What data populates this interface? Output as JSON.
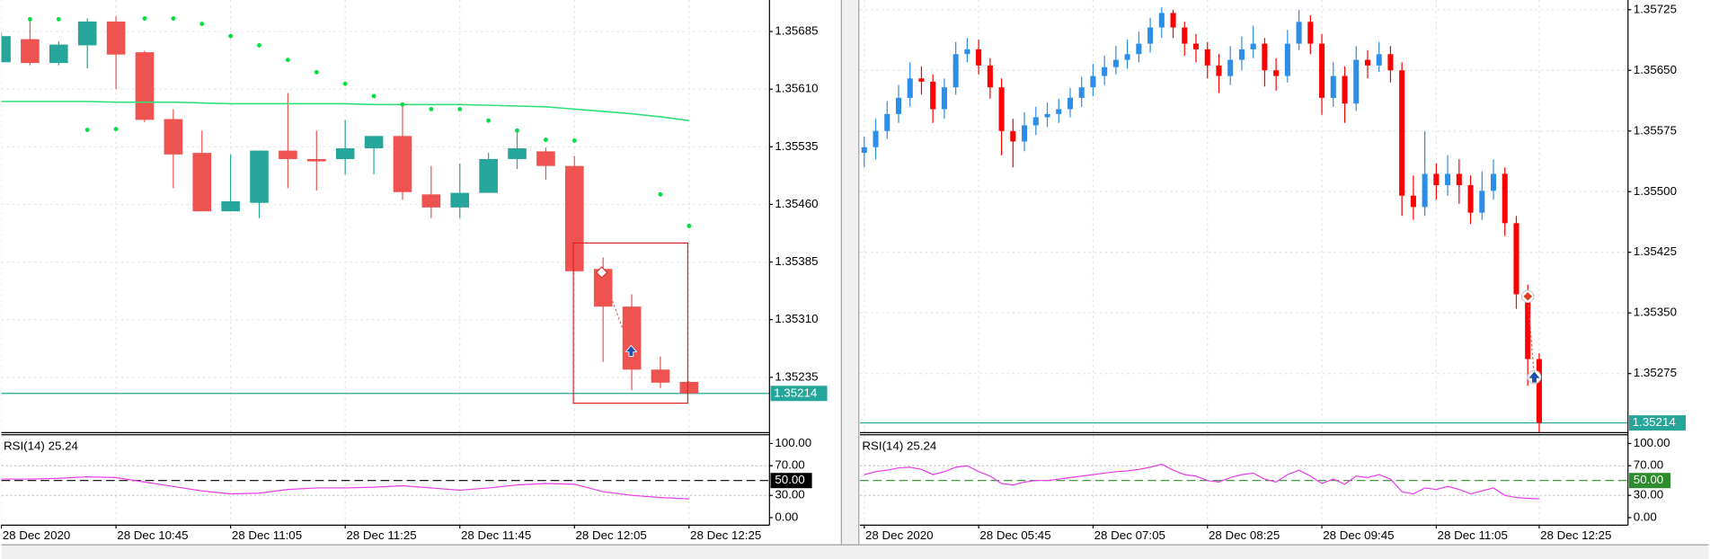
{
  "chart_data": [
    {
      "type": "candlestick",
      "categories": [
        "28 Dec 2020",
        null,
        null,
        null,
        "28 Dec 10:45",
        null,
        null,
        null,
        "28 Dec 11:05",
        null,
        null,
        null,
        "28 Dec 11:25",
        null,
        null,
        null,
        "28 Dec 11:45",
        null,
        null,
        null,
        "28 Dec 12:05",
        null,
        null,
        null,
        "28 Dec 12:25"
      ],
      "open": [
        1.35645,
        1.35675,
        1.35644,
        1.35667,
        1.35698,
        1.35658,
        1.35571,
        1.35527,
        1.35451,
        1.35462,
        1.3553,
        1.35519,
        1.35519,
        1.35533,
        1.35549,
        1.35473,
        1.35456,
        1.35475,
        1.35519,
        1.35529,
        1.3551,
        1.35376,
        1.35327,
        1.35245,
        1.35229
      ],
      "high": [
        1.35684,
        1.35701,
        1.35672,
        1.35702,
        1.35705,
        1.3566,
        1.35584,
        1.35556,
        1.35525,
        1.3553,
        1.35605,
        1.35556,
        1.3557,
        1.35549,
        1.35591,
        1.3551,
        1.35513,
        1.35527,
        1.35559,
        1.35534,
        1.35523,
        1.35391,
        1.35343,
        1.35262,
        1.3523
      ],
      "low": [
        1.35645,
        1.35641,
        1.35641,
        1.35637,
        1.3561,
        1.35567,
        1.35481,
        1.35451,
        1.35451,
        1.35442,
        1.35481,
        1.35478,
        1.35499,
        1.35499,
        1.35466,
        1.35442,
        1.35442,
        1.35475,
        1.35506,
        1.35492,
        1.35373,
        1.35255,
        1.35218,
        1.35221,
        1.35214
      ],
      "close": [
        1.35679,
        1.35644,
        1.35668,
        1.35698,
        1.35655,
        1.3557,
        1.35525,
        1.35451,
        1.35464,
        1.3553,
        1.35519,
        1.35516,
        1.35533,
        1.35549,
        1.35476,
        1.35456,
        1.35475,
        1.35519,
        1.35533,
        1.3551,
        1.35373,
        1.35327,
        1.35245,
        1.35228,
        1.35214
      ],
      "up_color": "#26a69a",
      "down_color": "#ef5350",
      "ma": {
        "color": "#2ee07a",
        "values": [
          1.35594,
          1.35594,
          1.35594,
          1.35594,
          1.35593,
          1.35593,
          1.35593,
          1.35592,
          1.35591,
          1.35591,
          1.35591,
          1.35591,
          1.35591,
          1.3559,
          1.3559,
          1.3559,
          1.3559,
          1.35589,
          1.35588,
          1.35587,
          1.35584,
          1.35581,
          1.35578,
          1.35574,
          1.35569
        ]
      },
      "sar": {
        "color": "#00e040",
        "values": [
          null,
          1.35701,
          1.35701,
          1.35557,
          1.35558,
          1.35702,
          1.35702,
          1.35695,
          1.35679,
          1.35667,
          1.35648,
          1.35632,
          1.35617,
          1.35601,
          1.3559,
          1.35584,
          1.35584,
          1.35569,
          1.35556,
          1.35544,
          1.35543,
          null,
          null,
          1.35473,
          1.35432
        ]
      },
      "ylim": [
        1.35163,
        1.35726
      ],
      "yticks": [
        {
          "value": 1.35685,
          "label": "1.35685"
        },
        {
          "value": 1.3561,
          "label": "1.35610"
        },
        {
          "value": 1.35535,
          "label": "1.35535"
        },
        {
          "value": 1.3546,
          "label": "1.35460"
        },
        {
          "value": 1.35385,
          "label": "1.35385"
        },
        {
          "value": 1.3531,
          "label": "1.35310"
        },
        {
          "value": 1.35235,
          "label": "1.35235"
        }
      ],
      "grid": true,
      "last_price": 1.35214,
      "last_price_color": "#26a69a",
      "rsi": {
        "title": "RSI(14) 25.24",
        "color": "#e83ce8",
        "values": [
          52,
          52,
          53,
          55,
          54,
          48,
          42,
          36,
          32,
          33,
          38,
          40,
          40,
          41,
          43,
          40,
          37,
          40,
          44,
          46,
          45,
          35,
          30,
          27,
          25.24
        ],
        "ylim": [
          -10.3,
          110.3
        ],
        "yticks": [
          {
            "value": 100,
            "label": "100.00"
          },
          {
            "value": 70,
            "label": "70.00"
          },
          {
            "value": 30,
            "label": "30.00"
          },
          {
            "value": 0,
            "label": "0.00"
          }
        ],
        "level": {
          "value": 50,
          "label": "50.00"
        },
        "level_color": "#000000"
      }
    },
    {
      "type": "candlestick",
      "categories": [
        "28 Dec 2020",
        null,
        null,
        null,
        null,
        null,
        null,
        null,
        null,
        null,
        "28 Dec 05:45",
        null,
        null,
        null,
        null,
        null,
        null,
        null,
        null,
        null,
        "28 Dec 07:05",
        null,
        null,
        null,
        null,
        null,
        null,
        null,
        null,
        null,
        "28 Dec 08:25",
        null,
        null,
        null,
        null,
        null,
        null,
        null,
        null,
        null,
        "28 Dec 09:45",
        null,
        null,
        null,
        null,
        null,
        null,
        null,
        null,
        null,
        "28 Dec 11:05",
        null,
        null,
        null,
        null,
        null,
        null,
        null,
        null,
        "28 Dec 12:25"
      ],
      "open": [
        1.35548,
        1.35555,
        1.35575,
        1.35596,
        1.35616,
        1.3564,
        1.35636,
        1.35602,
        1.35629,
        1.3567,
        1.35676,
        1.35656,
        1.35629,
        1.35575,
        1.35562,
        1.35582,
        1.35592,
        1.35596,
        1.35602,
        1.35616,
        1.35629,
        1.35643,
        1.35654,
        1.35663,
        1.3567,
        1.35683,
        1.35703,
        1.35721,
        1.35703,
        1.35683,
        1.35676,
        1.35656,
        1.35643,
        1.35663,
        1.35676,
        1.35683,
        1.3565,
        1.35643,
        1.35683,
        1.3571,
        1.35683,
        1.35616,
        1.35643,
        1.35609,
        1.35663,
        1.35656,
        1.3567,
        1.3565,
        1.35495,
        1.35481,
        1.35522,
        1.35508,
        1.35522,
        1.35508,
        1.35474,
        1.35501,
        1.35522,
        1.35461,
        1.35373,
        1.35293
      ],
      "high": [
        1.35568,
        1.3559,
        1.35612,
        1.35632,
        1.3566,
        1.35655,
        1.35645,
        1.3564,
        1.35685,
        1.3569,
        1.35688,
        1.35665,
        1.3564,
        1.3559,
        1.35598,
        1.35605,
        1.3561,
        1.35615,
        1.35628,
        1.35642,
        1.35658,
        1.35668,
        1.3568,
        1.35688,
        1.35698,
        1.35715,
        1.35728,
        1.35725,
        1.3571,
        1.35695,
        1.35685,
        1.3567,
        1.3568,
        1.35692,
        1.35705,
        1.3569,
        1.35665,
        1.357,
        1.35725,
        1.35718,
        1.35695,
        1.3566,
        1.35655,
        1.3568,
        1.35675,
        1.35685,
        1.3568,
        1.3566,
        1.3552,
        1.35575,
        1.35535,
        1.35545,
        1.3554,
        1.3552,
        1.35525,
        1.3554,
        1.3553,
        1.3547,
        1.35385,
        1.353
      ],
      "low": [
        1.3553,
        1.3554,
        1.35565,
        1.35585,
        1.35605,
        1.3562,
        1.35585,
        1.3559,
        1.3562,
        1.3566,
        1.35645,
        1.35615,
        1.35545,
        1.3553,
        1.3555,
        1.3557,
        1.3558,
        1.35585,
        1.35592,
        1.35605,
        1.35618,
        1.35632,
        1.35645,
        1.35652,
        1.3566,
        1.35672,
        1.3569,
        1.3569,
        1.35668,
        1.3566,
        1.3564,
        1.35622,
        1.35632,
        1.3565,
        1.35665,
        1.3563,
        1.35625,
        1.35635,
        1.35675,
        1.3567,
        1.35595,
        1.35605,
        1.35585,
        1.356,
        1.3564,
        1.35648,
        1.35635,
        1.3547,
        1.35465,
        1.3547,
        1.3549,
        1.35495,
        1.35485,
        1.3546,
        1.35465,
        1.3549,
        1.35445,
        1.35355,
        1.3526,
        1.352
      ],
      "close": [
        1.35555,
        1.35575,
        1.35596,
        1.35616,
        1.3564,
        1.35636,
        1.35602,
        1.35629,
        1.3567,
        1.35676,
        1.35656,
        1.35629,
        1.35575,
        1.35562,
        1.35582,
        1.35592,
        1.35596,
        1.35602,
        1.35616,
        1.35629,
        1.35643,
        1.35654,
        1.35663,
        1.3567,
        1.35683,
        1.35703,
        1.35721,
        1.35703,
        1.35683,
        1.35676,
        1.35656,
        1.35643,
        1.35663,
        1.35676,
        1.35683,
        1.3565,
        1.35643,
        1.35683,
        1.3571,
        1.35683,
        1.35616,
        1.35643,
        1.35609,
        1.35663,
        1.35656,
        1.3567,
        1.3565,
        1.35495,
        1.35481,
        1.35522,
        1.35508,
        1.35522,
        1.35508,
        1.35474,
        1.35501,
        1.35522,
        1.35461,
        1.35373,
        1.35293,
        1.35214
      ],
      "up_color": "#2d8ee8",
      "down_color": "#ff0000",
      "ylim": [
        1.35202,
        1.35737
      ],
      "yticks": [
        {
          "value": 1.35725,
          "label": "1.35725"
        },
        {
          "value": 1.3565,
          "label": "1.35650"
        },
        {
          "value": 1.35575,
          "label": "1.35575"
        },
        {
          "value": 1.355,
          "label": "1.35500"
        },
        {
          "value": 1.35425,
          "label": "1.35425"
        },
        {
          "value": 1.3535,
          "label": "1.35350"
        },
        {
          "value": 1.35275,
          "label": "1.35275"
        }
      ],
      "grid": true,
      "last_price": 1.35214,
      "last_price_color": "#26a69a",
      "rsi": {
        "title": "RSI(14) 25.24",
        "color": "#e83ce8",
        "values": [
          58,
          62,
          64,
          67,
          68,
          65,
          58,
          62,
          68,
          70,
          62,
          56,
          46,
          44,
          48,
          50,
          50,
          52,
          54,
          56,
          58,
          60,
          62,
          63,
          65,
          68,
          72,
          64,
          58,
          56,
          50,
          48,
          54,
          58,
          60,
          52,
          48,
          58,
          64,
          56,
          46,
          52,
          45,
          56,
          54,
          58,
          52,
          35,
          32,
          40,
          38,
          42,
          38,
          32,
          36,
          40,
          30,
          27,
          26,
          25.24
        ],
        "ylim": [
          -10.3,
          110.3
        ],
        "yticks": [
          {
            "value": 100,
            "label": "100.00"
          },
          {
            "value": 70,
            "label": "70.00"
          },
          {
            "value": 30,
            "label": "30.00"
          },
          {
            "value": 0,
            "label": "0.00"
          }
        ],
        "level": {
          "value": 50,
          "label": "50.00"
        },
        "level_color": "#2e8b2e"
      }
    }
  ]
}
